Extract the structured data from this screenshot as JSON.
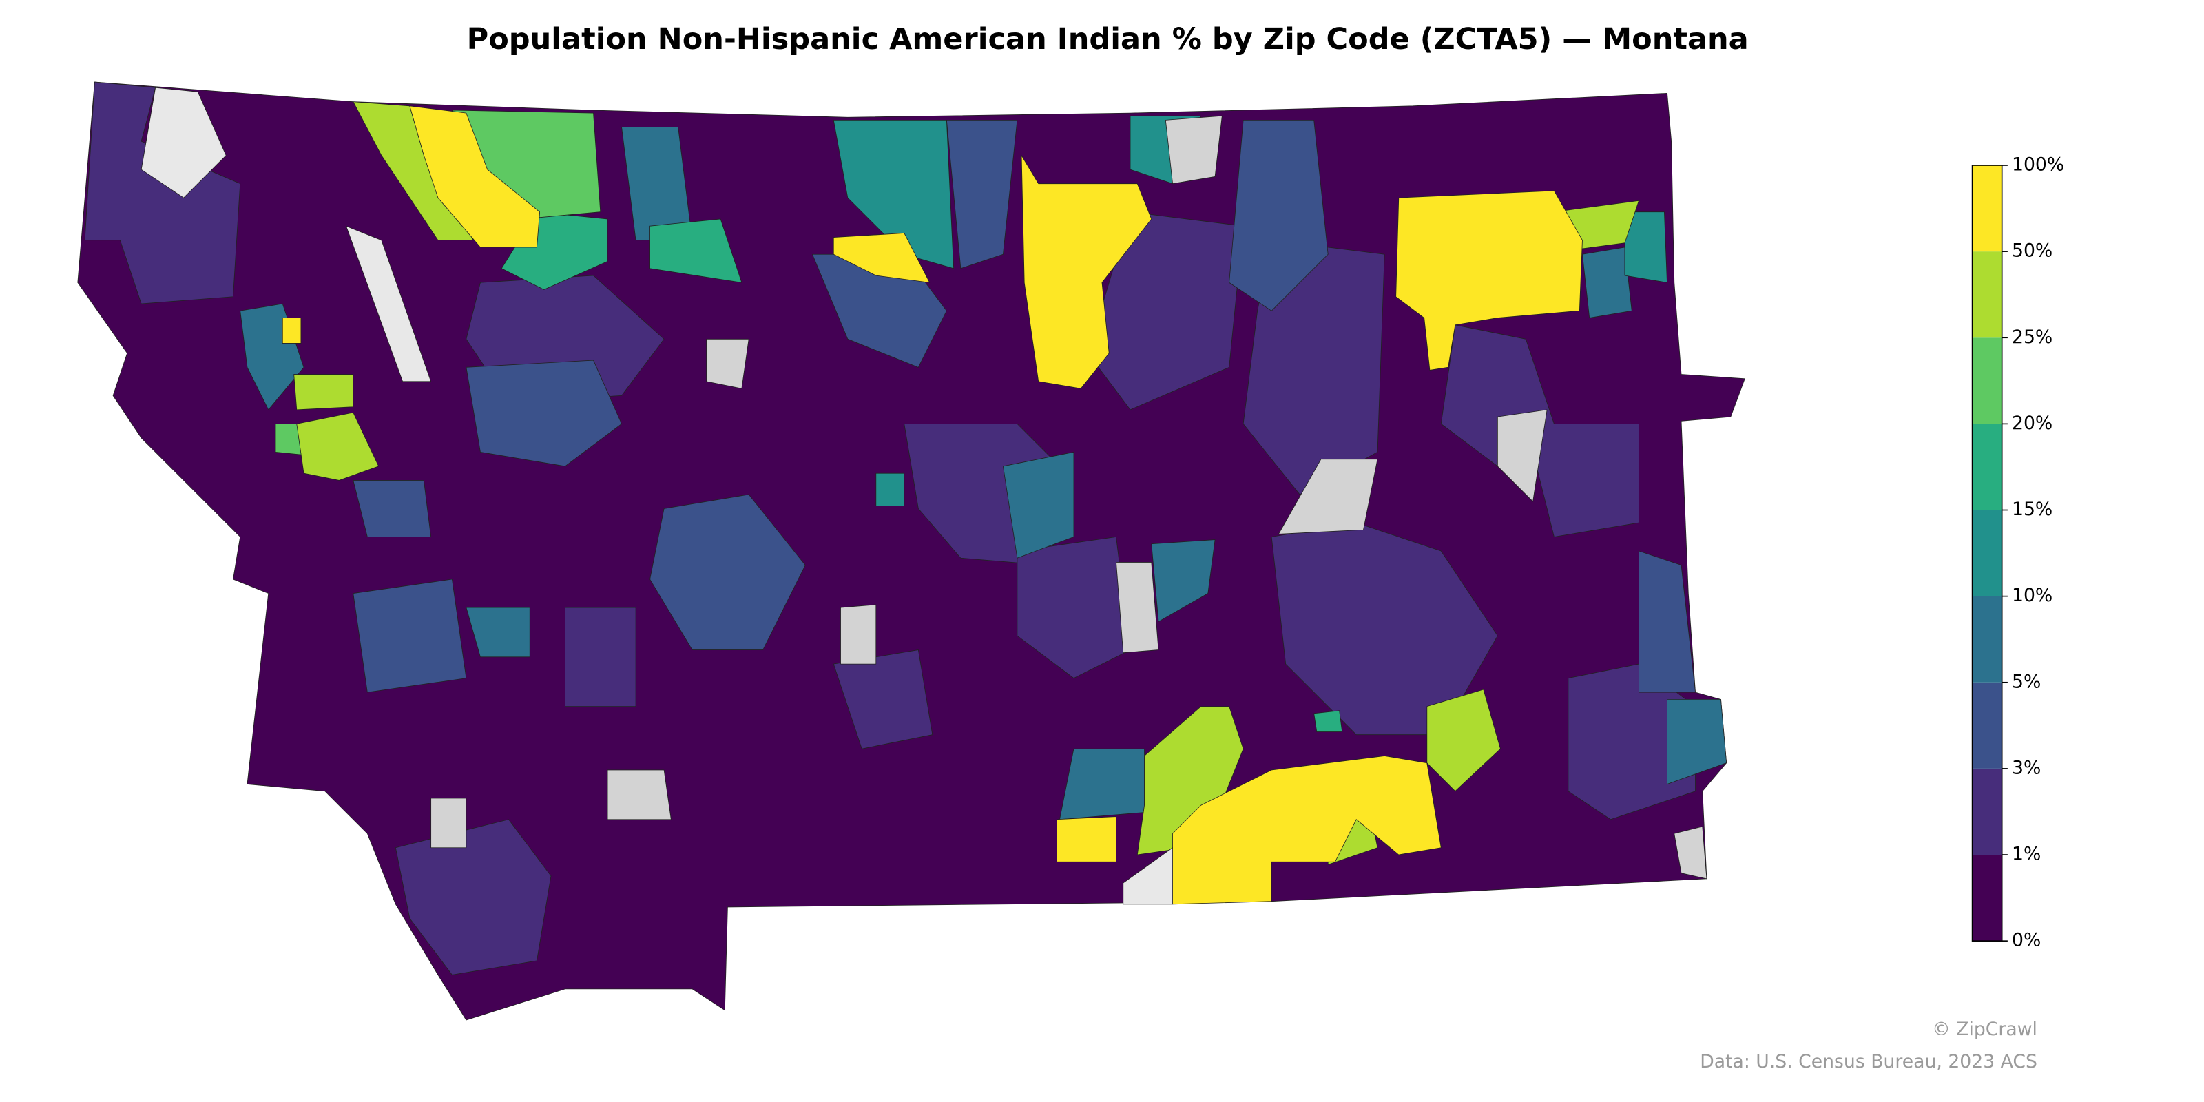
{
  "title": "Population Non-Hispanic American Indian % by Zip Code (ZCTA5) — Montana",
  "legend": {
    "ticks": [
      "0%",
      "1%",
      "3%",
      "5%",
      "10%",
      "15%",
      "20%",
      "25%",
      "50%",
      "100%"
    ],
    "colors": [
      "#440154",
      "#472d7b",
      "#3b528b",
      "#2c728e",
      "#21918c",
      "#28ae80",
      "#5ec962",
      "#addc30",
      "#fde725"
    ]
  },
  "credits": [
    "© ZipCrawl",
    "Data: U.S. Census Bureau, 2023 ACS"
  ]
}
